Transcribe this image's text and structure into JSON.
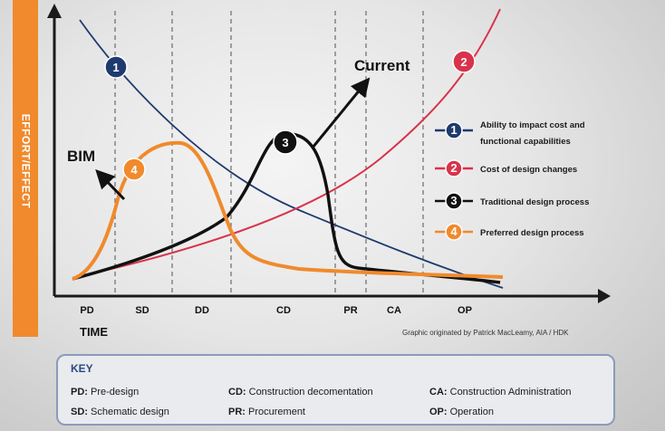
{
  "y_axis_label": "EFFORT/EFFECT",
  "x_axis_label": "TIME",
  "phases": [
    "PD",
    "SD",
    "DD",
    "CD",
    "PR",
    "CA",
    "OP"
  ],
  "annotations": {
    "bim": "BIM",
    "current": "Current"
  },
  "credit": "Graphic originated by Patrick MacLeamy, AIA / HDK",
  "curves": [
    {
      "id": "1",
      "label": "Ability to impact cost and functional capabilities",
      "color": "#1f3a6e"
    },
    {
      "id": "2",
      "label": "Cost of design changes",
      "color": "#d8334a"
    },
    {
      "id": "3",
      "label": "Traditional design process",
      "color": "#111111"
    },
    {
      "id": "4",
      "label": "Preferred design process",
      "color": "#f08a2c"
    }
  ],
  "key": {
    "title": "KEY",
    "entries": [
      {
        "abbr": "PD:",
        "text": "Pre-design"
      },
      {
        "abbr": "SD:",
        "text": "Schematic design"
      },
      {
        "abbr": "CD:",
        "text": "Construction decomentation"
      },
      {
        "abbr": "PR:",
        "text": "Procurement"
      },
      {
        "abbr": "CA:",
        "text": "Construction Administration"
      },
      {
        "abbr": "OP:",
        "text": "Operation"
      }
    ]
  }
}
